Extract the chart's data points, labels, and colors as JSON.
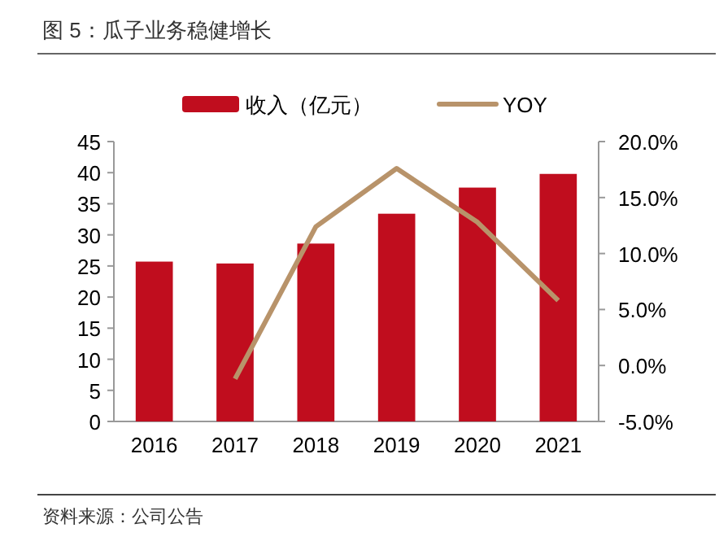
{
  "chart_data": {
    "type": "bar",
    "title": "图 5：瓜子业务稳健增长",
    "categories": [
      "2016",
      "2017",
      "2018",
      "2019",
      "2020",
      "2021"
    ],
    "series": [
      {
        "name": "收入（亿元）",
        "color": "#c00d1e",
        "values": [
          25.7,
          25.4,
          28.6,
          33.4,
          37.6,
          39.8
        ]
      },
      {
        "name": "YOY",
        "type": "line",
        "axis": "y2",
        "color": "#b8936a",
        "values": [
          null,
          -1.2,
          12.4,
          17.6,
          12.8,
          5.8
        ]
      }
    ],
    "ylim": [
      0,
      45
    ],
    "yticks": [
      0,
      5,
      10,
      15,
      20,
      25,
      30,
      35,
      40,
      45
    ],
    "y2lim": [
      -5,
      20
    ],
    "y2ticks": [
      {
        "value": -5,
        "label": "-5.0%"
      },
      {
        "value": 0,
        "label": "0.0%"
      },
      {
        "value": 5,
        "label": "5.0%"
      },
      {
        "value": 10,
        "label": "10.0%"
      },
      {
        "value": 15,
        "label": "15.0%"
      },
      {
        "value": 20,
        "label": "20.0%"
      }
    ],
    "legend": "top",
    "marker": "none",
    "annotations": [
      "资料来源：公司公告"
    ]
  }
}
